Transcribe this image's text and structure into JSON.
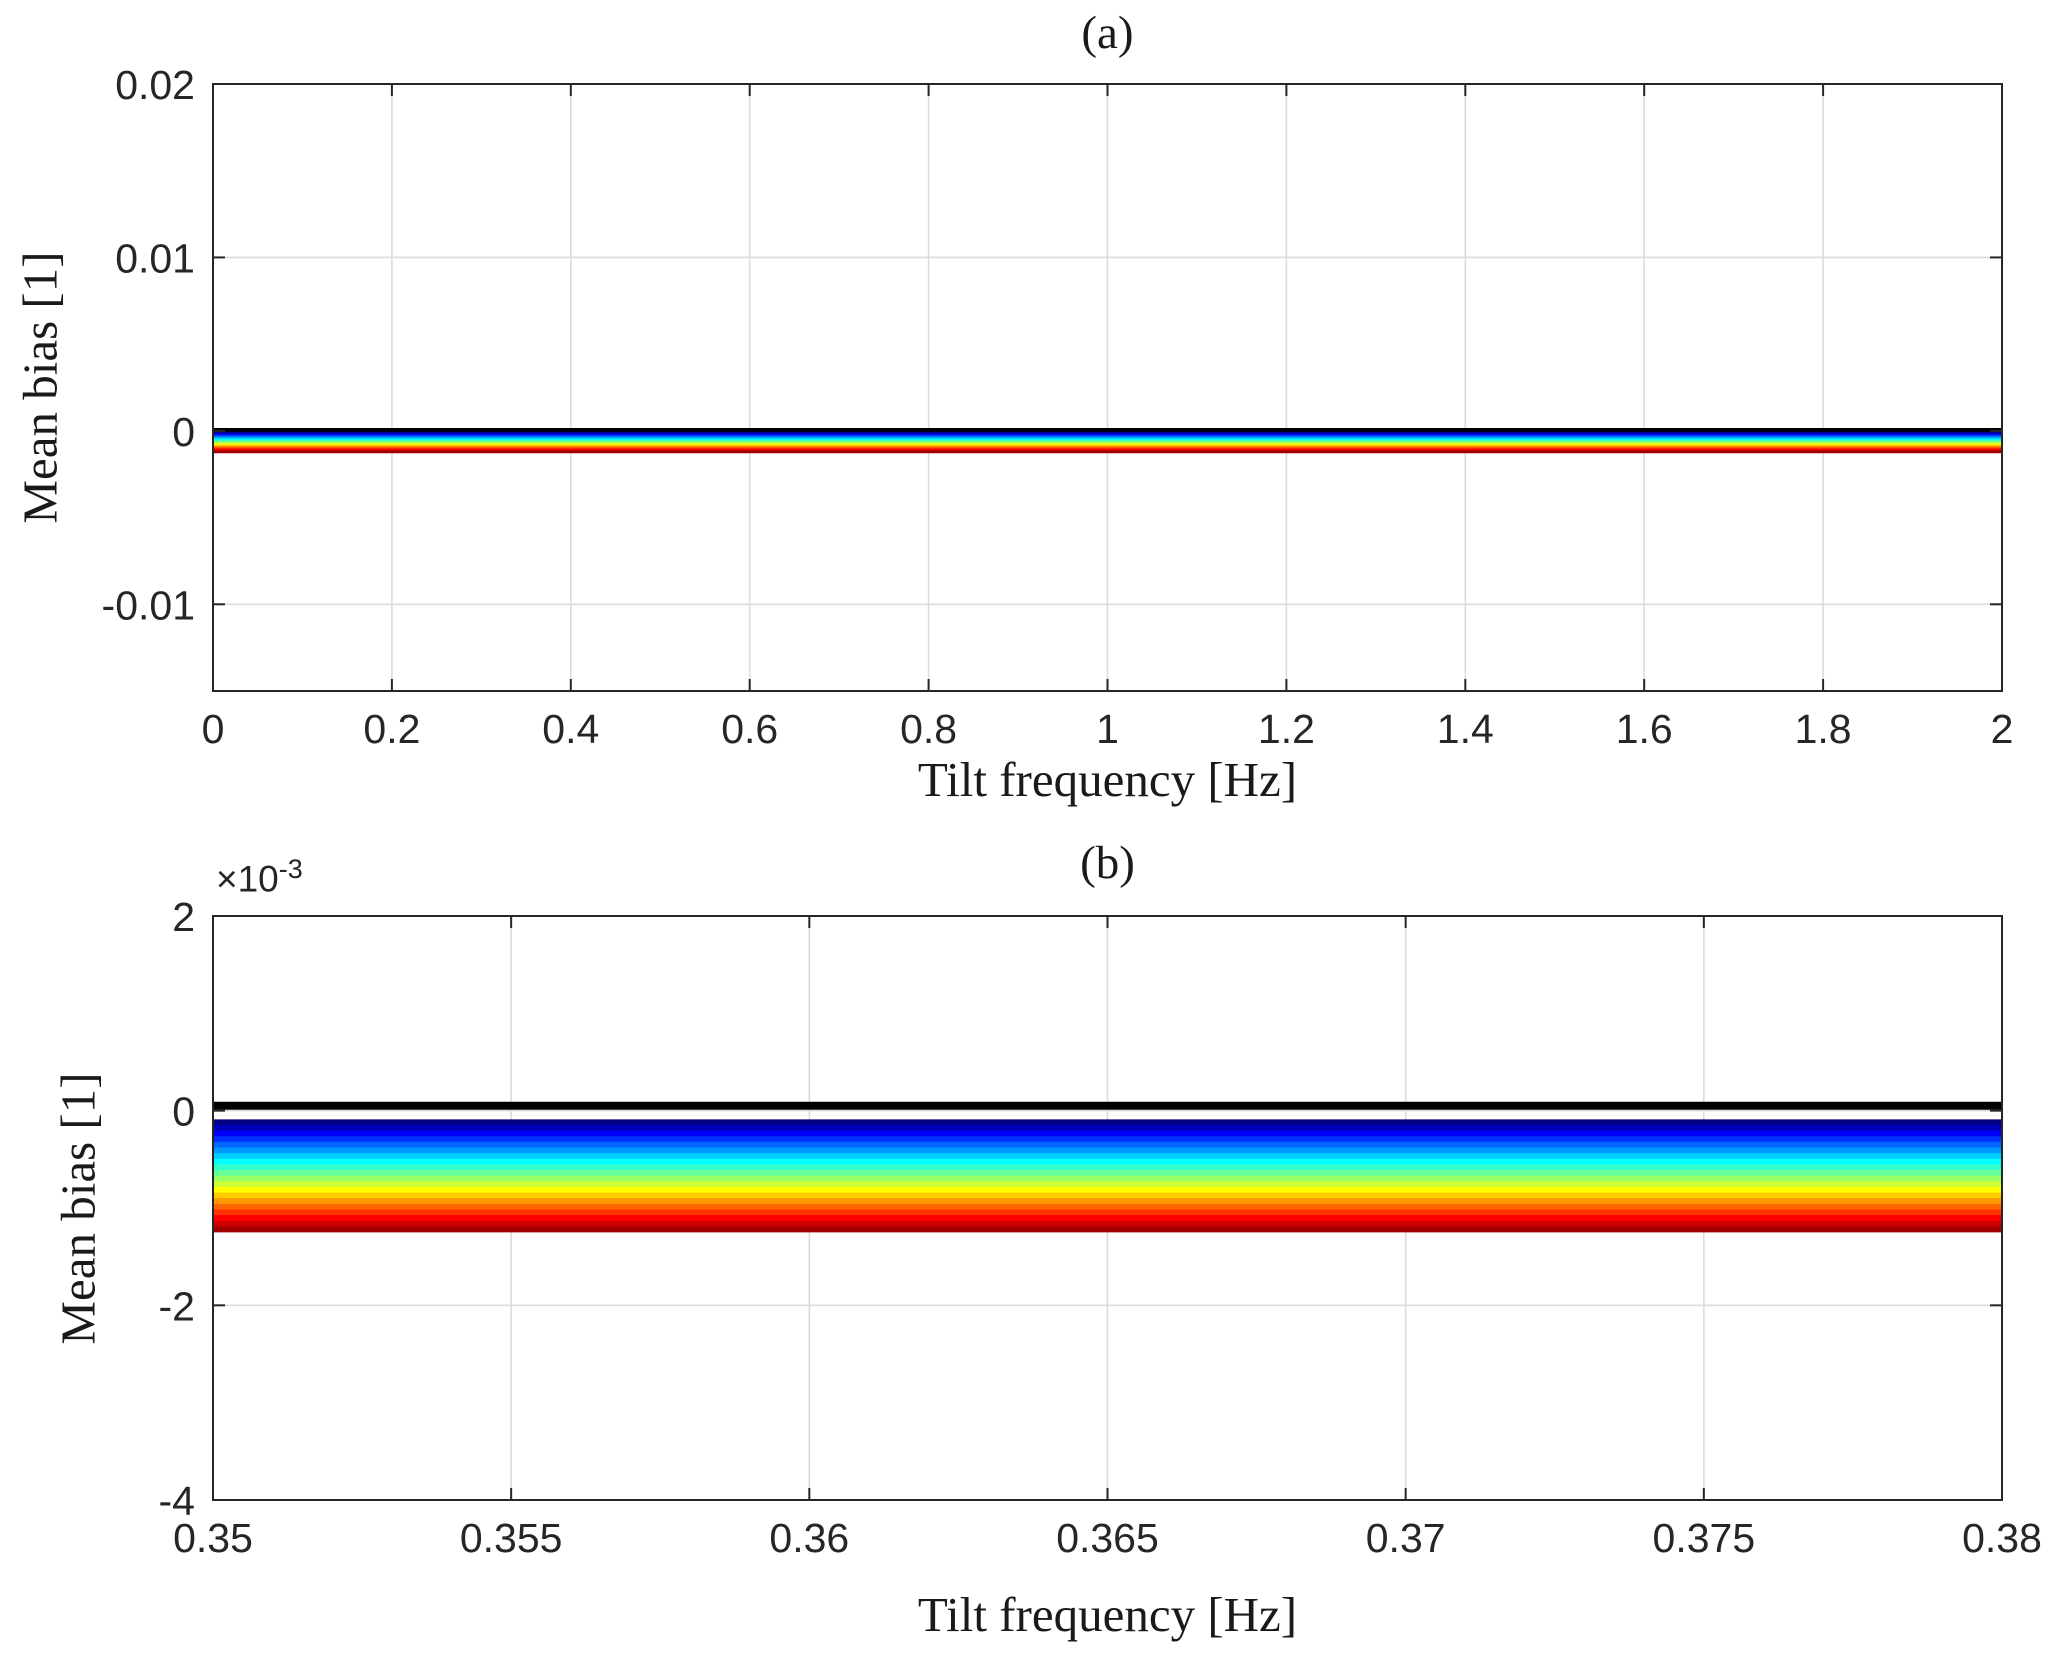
{
  "figure": {
    "background": "#ffffff",
    "grid_color": "#dcdcdc",
    "axis_color": "#262626",
    "tick_label_color": "#262626"
  },
  "chart_data": [
    {
      "type": "line",
      "panel_label": "(a)",
      "xlabel": "Tilt frequency [Hz]",
      "ylabel": "Mean bias [1]",
      "xlim": [
        0,
        2
      ],
      "ylim": [
        -0.015,
        0.02
      ],
      "xtick_values": [
        0,
        0.2,
        0.4,
        0.6,
        0.8,
        1,
        1.2,
        1.4,
        1.6,
        1.8,
        2
      ],
      "xtick_labels": [
        "0",
        "0.2",
        "0.4",
        "0.6",
        "0.8",
        "1",
        "1.2",
        "1.4",
        "1.6",
        "1.8",
        "2"
      ],
      "ytick_values": [
        0.02,
        0.01,
        0,
        -0.01
      ],
      "ytick_labels": [
        "0.02",
        "0.01",
        "0",
        "-0.01"
      ],
      "grid": true,
      "legend": "none",
      "series_shape": "flat horizontal lines spanning full x-range, jet colormap band just below zero with black reference line at zero",
      "series": [
        {
          "color": "#000000",
          "y": 5e-05
        },
        {
          "color": "#000080",
          "y": -0.00012
        },
        {
          "color": "#0000BB",
          "y": -0.000178
        },
        {
          "color": "#0000F6",
          "y": -0.000236
        },
        {
          "color": "#0033FF",
          "y": -0.000294
        },
        {
          "color": "#0066FF",
          "y": -0.000352
        },
        {
          "color": "#0099FF",
          "y": -0.000409
        },
        {
          "color": "#00CCFF",
          "y": -0.000467
        },
        {
          "color": "#00FFFF",
          "y": -0.000525
        },
        {
          "color": "#33FFCC",
          "y": -0.000583
        },
        {
          "color": "#66FF99",
          "y": -0.000641
        },
        {
          "color": "#99FF66",
          "y": -0.000699
        },
        {
          "color": "#CCFF33",
          "y": -0.000757
        },
        {
          "color": "#FFFF00",
          "y": -0.000815
        },
        {
          "color": "#FFCC00",
          "y": -0.000873
        },
        {
          "color": "#FF9900",
          "y": -0.00093
        },
        {
          "color": "#FF6600",
          "y": -0.000988
        },
        {
          "color": "#FF3300",
          "y": -0.001046
        },
        {
          "color": "#FF0000",
          "y": -0.001104
        },
        {
          "color": "#D00000",
          "y": -0.001162
        },
        {
          "color": "#A00000",
          "y": -0.00122
        }
      ]
    },
    {
      "type": "line",
      "panel_label": "(b)",
      "xlabel": "Tilt frequency [Hz]",
      "ylabel": "Mean bias [1]",
      "y_exponent_base": "×10",
      "y_exponent_power": "-3",
      "xlim": [
        0.35,
        0.38
      ],
      "ylim": [
        -0.004,
        0.002
      ],
      "xtick_values": [
        0.35,
        0.355,
        0.36,
        0.365,
        0.37,
        0.375,
        0.38
      ],
      "xtick_labels": [
        "0.35",
        "0.355",
        "0.36",
        "0.365",
        "0.37",
        "0.375",
        "0.38"
      ],
      "ytick_values": [
        0.002,
        0,
        -0.002,
        -0.004
      ],
      "ytick_labels": [
        "2",
        "0",
        "-2",
        "-4"
      ],
      "grid": true,
      "legend": "none",
      "series_shape": "flat horizontal lines spanning full x-range, jet colormap band between 0 and -1.2e-3 with thick black reference line at zero",
      "series": [
        {
          "color": "#000000",
          "y": 5e-05
        },
        {
          "color": "#000080",
          "y": -0.00012
        },
        {
          "color": "#0000BB",
          "y": -0.000178
        },
        {
          "color": "#0000F6",
          "y": -0.000236
        },
        {
          "color": "#0033FF",
          "y": -0.000294
        },
        {
          "color": "#0066FF",
          "y": -0.000352
        },
        {
          "color": "#0099FF",
          "y": -0.000409
        },
        {
          "color": "#00CCFF",
          "y": -0.000467
        },
        {
          "color": "#00FFFF",
          "y": -0.000525
        },
        {
          "color": "#33FFCC",
          "y": -0.000583
        },
        {
          "color": "#66FF99",
          "y": -0.000641
        },
        {
          "color": "#99FF66",
          "y": -0.000699
        },
        {
          "color": "#CCFF33",
          "y": -0.000757
        },
        {
          "color": "#FFFF00",
          "y": -0.000815
        },
        {
          "color": "#FFCC00",
          "y": -0.000873
        },
        {
          "color": "#FF9900",
          "y": -0.00093
        },
        {
          "color": "#FF6600",
          "y": -0.000988
        },
        {
          "color": "#FF3300",
          "y": -0.001046
        },
        {
          "color": "#FF0000",
          "y": -0.001104
        },
        {
          "color": "#D00000",
          "y": -0.001162
        },
        {
          "color": "#A00000",
          "y": -0.00122
        }
      ]
    }
  ]
}
